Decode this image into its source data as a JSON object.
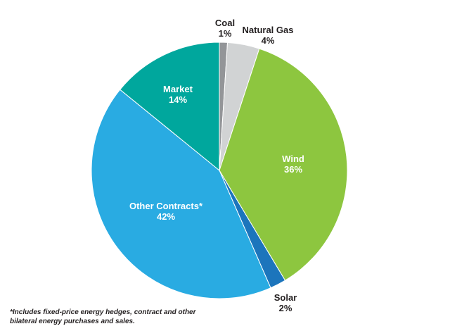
{
  "chart_data": {
    "type": "pie",
    "slices": [
      {
        "label": "Coal",
        "value": 1,
        "value_label": "1%",
        "color": "#939598"
      },
      {
        "label": "Natural Gas",
        "value": 4,
        "value_label": "4%",
        "color": "#d1d3d4"
      },
      {
        "label": "Wind",
        "value": 36,
        "value_label": "36%",
        "color": "#8dc63f"
      },
      {
        "label": "Solar",
        "value": 2,
        "value_label": "2%",
        "color": "#1c75bc"
      },
      {
        "label": "Other Contracts*",
        "value": 42,
        "value_label": "42%",
        "color": "#29abe2"
      },
      {
        "label": "Market",
        "value": 14,
        "value_label": "14%",
        "color": "#00a79d"
      }
    ],
    "start": "12 o'clock",
    "direction": "clockwise",
    "footnote": "*Includes fixed-price energy hedges, contract and other bilateral energy purchases and sales."
  }
}
